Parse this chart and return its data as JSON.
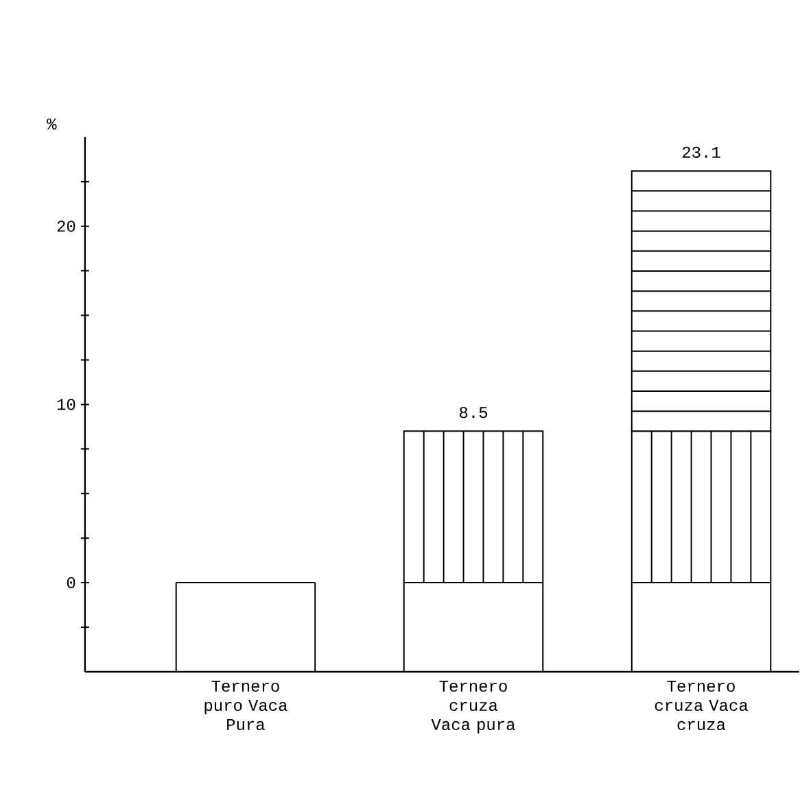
{
  "chart_data": {
    "type": "bar",
    "stacked": true,
    "ylabel": "%",
    "categories": [
      "Ternero puro Vaca Pura",
      "Ternero cruza Vaca pura",
      "Ternero cruza Vaca cruza"
    ],
    "series": [
      {
        "color": "#ffffff",
        "values": [
          0,
          8.5,
          8.5
        ]
      },
      {
        "color": "#ffffff",
        "values": [
          null,
          null,
          14.6
        ]
      }
    ],
    "totals": [
      null,
      "8.5",
      "23.1"
    ],
    "ylim": [
      -5,
      25
    ],
    "yticks": [
      {
        "value": -2.5,
        "label": null
      },
      0,
      {
        "value": 2.5,
        "label": null
      },
      {
        "value": 5,
        "label": null
      },
      {
        "value": 7.5,
        "label": null
      },
      10,
      {
        "value": 12.5,
        "label": null
      },
      {
        "value": 15,
        "label": null
      },
      {
        "value": 17.5,
        "label": null
      },
      20,
      {
        "value": 22.5,
        "label": null
      }
    ]
  }
}
